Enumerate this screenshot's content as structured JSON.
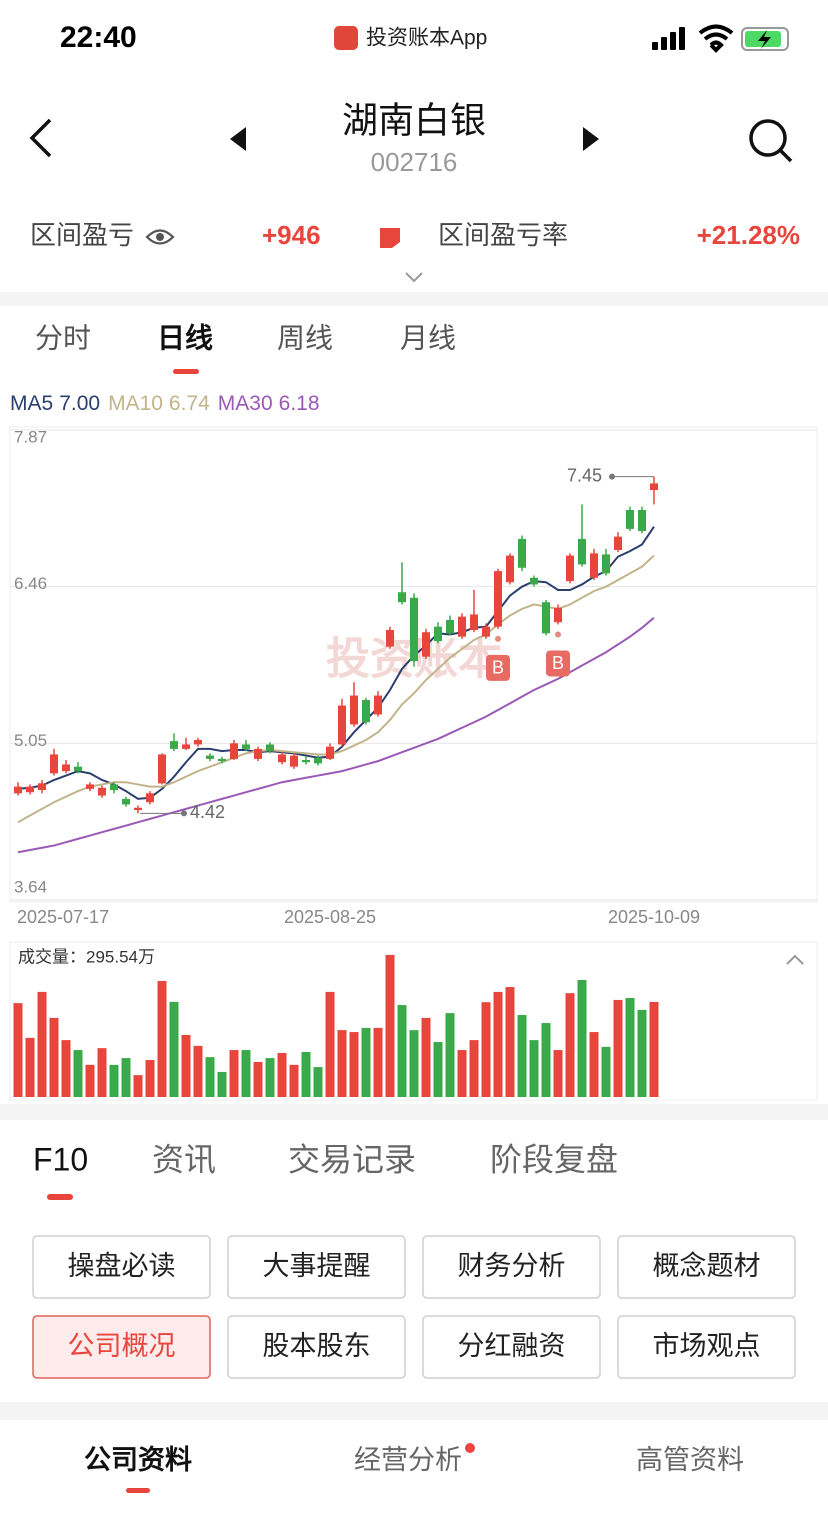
{
  "status": {
    "time": "22:40",
    "app": "投资账本App"
  },
  "header": {
    "title": "湖南白银",
    "code": "002716"
  },
  "summary": {
    "pnl_label": "区间盈亏",
    "pnl_value": "+946",
    "rate_label": "区间盈亏率",
    "rate_value": "+21.28%"
  },
  "chart_tabs": {
    "items": [
      "分时",
      "日线",
      "周线",
      "月线"
    ],
    "active": 1
  },
  "watermark": "投资账本",
  "chart_data": {
    "type": "candlestick",
    "categories": [
      "2025-07-17",
      null,
      null,
      null,
      null,
      null,
      null,
      null,
      null,
      null,
      null,
      null,
      null,
      null,
      null,
      null,
      null,
      null,
      null,
      null,
      null,
      null,
      null,
      null,
      null,
      null,
      "2025-08-25",
      null,
      null,
      null,
      null,
      null,
      null,
      null,
      null,
      null,
      null,
      null,
      null,
      null,
      null,
      null,
      null,
      null,
      null,
      null,
      null,
      null,
      null,
      null,
      null,
      null,
      null,
      "2025-10-09"
    ],
    "ohlc": [
      [
        4.6,
        4.66,
        4.7,
        4.58
      ],
      [
        4.61,
        4.66,
        4.68,
        4.59
      ],
      [
        4.63,
        4.69,
        4.72,
        4.6
      ],
      [
        4.78,
        4.95,
        5.0,
        4.76
      ],
      [
        4.8,
        4.86,
        4.9,
        4.78
      ],
      [
        4.84,
        4.8,
        4.88,
        4.78
      ],
      [
        4.64,
        4.68,
        4.7,
        4.62
      ],
      [
        4.58,
        4.65,
        4.67,
        4.56
      ],
      [
        4.68,
        4.63,
        4.7,
        4.6
      ],
      [
        4.55,
        4.5,
        4.57,
        4.48
      ],
      [
        4.45,
        4.47,
        4.49,
        4.42
      ],
      [
        4.52,
        4.6,
        4.62,
        4.5
      ],
      [
        4.69,
        4.95,
        4.96,
        4.68
      ],
      [
        5.07,
        5.0,
        5.14,
        4.98
      ],
      [
        5.0,
        5.04,
        5.1,
        4.99
      ],
      [
        5.04,
        5.08,
        5.1,
        5.02
      ],
      [
        4.94,
        4.91,
        4.96,
        4.89
      ],
      [
        4.91,
        4.89,
        4.93,
        4.87
      ],
      [
        4.91,
        5.05,
        5.08,
        4.9
      ],
      [
        5.04,
        5.0,
        5.08,
        4.98
      ],
      [
        4.91,
        5.0,
        5.02,
        4.89
      ],
      [
        5.04,
        4.98,
        5.06,
        4.96
      ],
      [
        4.88,
        4.95,
        4.97,
        4.86
      ],
      [
        4.84,
        4.94,
        4.96,
        4.82
      ],
      [
        4.9,
        4.88,
        4.93,
        4.86
      ],
      [
        4.92,
        4.87,
        4.94,
        4.85
      ],
      [
        4.91,
        5.02,
        5.05,
        4.9
      ],
      [
        5.04,
        5.39,
        5.45,
        5.02
      ],
      [
        5.22,
        5.48,
        5.6,
        5.2
      ],
      [
        5.44,
        5.24,
        5.46,
        5.22
      ],
      [
        5.31,
        5.48,
        5.52,
        5.29
      ],
      [
        5.92,
        6.07,
        6.1,
        5.9
      ],
      [
        6.41,
        6.32,
        6.68,
        6.3
      ],
      [
        6.36,
        5.79,
        6.4,
        5.74
      ],
      [
        5.83,
        6.05,
        6.08,
        5.81
      ],
      [
        6.1,
        5.97,
        6.14,
        5.95
      ],
      [
        6.16,
        6.04,
        6.2,
        6.02
      ],
      [
        6.01,
        6.19,
        6.22,
        5.99
      ],
      [
        6.07,
        6.21,
        6.43,
        6.05
      ],
      [
        6.01,
        6.1,
        6.13,
        5.99
      ],
      [
        6.1,
        6.6,
        6.62,
        6.08
      ],
      [
        6.5,
        6.74,
        6.76,
        6.48
      ],
      [
        6.89,
        6.63,
        6.92,
        6.6
      ],
      [
        6.54,
        6.48,
        6.56,
        6.46
      ],
      [
        6.32,
        6.04,
        6.34,
        6.02
      ],
      [
        6.14,
        6.27,
        6.3,
        6.12
      ],
      [
        6.51,
        6.74,
        6.76,
        6.49
      ],
      [
        6.89,
        6.66,
        7.2,
        6.64
      ],
      [
        6.54,
        6.76,
        6.8,
        6.52
      ],
      [
        6.75,
        6.58,
        6.8,
        6.56
      ],
      [
        6.79,
        6.91,
        6.95,
        6.77
      ],
      [
        7.15,
        6.98,
        7.18,
        6.96
      ],
      [
        7.15,
        6.96,
        7.18,
        6.94
      ],
      [
        7.33,
        7.39,
        7.45,
        7.2
      ]
    ],
    "up_color": "#e8453c",
    "down_color": "#3aa94a",
    "ma": [
      {
        "name": "MA5",
        "current_label": "7.00",
        "color": "#2b3f6e",
        "values": [
          4.64,
          4.65,
          4.67,
          4.72,
          4.76,
          4.8,
          4.78,
          4.72,
          4.68,
          4.62,
          4.55,
          4.56,
          4.64,
          4.75,
          4.88,
          5.0,
          5.0,
          4.98,
          4.99,
          4.99,
          4.97,
          4.98,
          4.97,
          4.96,
          4.94,
          4.92,
          4.93,
          5.02,
          5.15,
          5.26,
          5.37,
          5.53,
          5.72,
          5.84,
          5.93,
          6.04,
          6.03,
          6.05,
          6.09,
          6.1,
          6.24,
          6.38,
          6.46,
          6.51,
          6.5,
          6.43,
          6.43,
          6.48,
          6.55,
          6.6,
          6.73,
          6.78,
          6.84,
          7.0
        ]
      },
      {
        "name": "MA10",
        "current_label": "6.74",
        "color": "#c2b48a",
        "values": [
          4.34,
          4.4,
          4.46,
          4.52,
          4.57,
          4.62,
          4.66,
          4.68,
          4.7,
          4.7,
          4.68,
          4.66,
          4.66,
          4.7,
          4.75,
          4.8,
          4.84,
          4.88,
          4.92,
          4.96,
          4.98,
          4.99,
          4.98,
          4.97,
          4.96,
          4.95,
          4.95,
          4.98,
          5.03,
          5.08,
          5.15,
          5.26,
          5.4,
          5.5,
          5.62,
          5.72,
          5.82,
          5.9,
          5.98,
          6.03,
          6.12,
          6.2,
          6.26,
          6.3,
          6.28,
          6.26,
          6.3,
          6.36,
          6.42,
          6.46,
          6.52,
          6.58,
          6.64,
          6.74
        ]
      },
      {
        "name": "MA30",
        "current_label": "6.18",
        "color": "#9b59b6",
        "values": [
          4.07,
          4.09,
          4.11,
          4.13,
          4.16,
          4.19,
          4.22,
          4.25,
          4.28,
          4.31,
          4.34,
          4.37,
          4.4,
          4.43,
          4.46,
          4.49,
          4.52,
          4.55,
          4.58,
          4.61,
          4.64,
          4.67,
          4.7,
          4.72,
          4.74,
          4.76,
          4.78,
          4.8,
          4.83,
          4.86,
          4.89,
          4.93,
          4.97,
          5.01,
          5.05,
          5.09,
          5.14,
          5.19,
          5.24,
          5.29,
          5.35,
          5.41,
          5.47,
          5.53,
          5.58,
          5.63,
          5.69,
          5.75,
          5.81,
          5.87,
          5.94,
          6.01,
          6.09,
          6.18
        ]
      }
    ],
    "ylim": [
      3.64,
      7.87
    ],
    "yticks": [
      7.87,
      6.46,
      5.05,
      3.64
    ],
    "grid": true,
    "max": 7.45,
    "min": 4.42,
    "buy_markers": [
      {
        "index": 40,
        "label": "B"
      },
      {
        "index": 45,
        "label": "B"
      }
    ],
    "volume_label": "成交量：295.54万",
    "volume": [
      292,
      184,
      327,
      246,
      177,
      146,
      100,
      152,
      100,
      121,
      68,
      115,
      361,
      296,
      193,
      159,
      124,
      78,
      146,
      146,
      109,
      121,
      137,
      100,
      140,
      93,
      327,
      208,
      202,
      215,
      215,
      442,
      286,
      208,
      246,
      171,
      261,
      146,
      177,
      295,
      327,
      342,
      255,
      177,
      230,
      146,
      323,
      364,
      202,
      156,
      302,
      308,
      271,
      295.54
    ]
  },
  "section_tabs": {
    "items": [
      "F10",
      "资讯",
      "交易记录",
      "阶段复盘"
    ],
    "active": 0
  },
  "buttons": {
    "items": [
      "操盘必读",
      "大事提醒",
      "财务分析",
      "概念题材",
      "公司概况",
      "股本股东",
      "分红融资",
      "市场观点"
    ],
    "active": 4
  },
  "bottom_tabs": {
    "items": [
      "公司资料",
      "经营分析",
      "高管资料"
    ],
    "active": 0,
    "dot": 1
  }
}
